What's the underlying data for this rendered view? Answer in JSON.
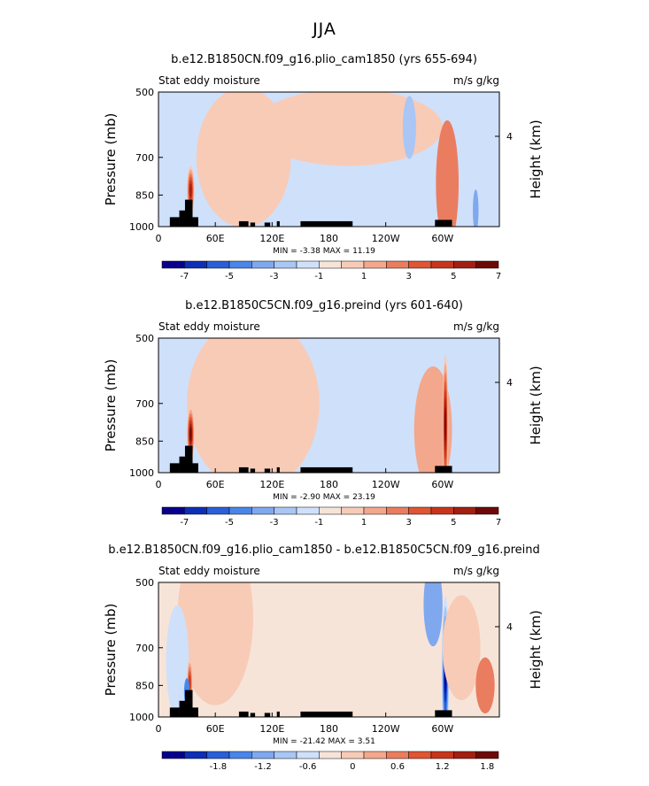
{
  "figure_title": "JJA",
  "chart_data": [
    {
      "type": "heatmap",
      "title": "b.e12.B1850CN.f09_g16.plio_cam1850 (yrs 655-694)",
      "left_label": "Stat eddy moisture",
      "right_label": "m/s g/kg",
      "ylabel": "Pressure (mb)",
      "ylabel_right": "Height (km)",
      "y_ticks": [
        "500",
        "700",
        "850",
        "1000"
      ],
      "y_right_ticks": [
        "4"
      ],
      "x_ticks": [
        "0",
        "60E",
        "120E",
        "180",
        "120W",
        "60W"
      ],
      "stats": "MIN = -3.38  MAX = 11.19",
      "colorbar_ticks": [
        "-7",
        "-5",
        "-3",
        "-1",
        "1",
        "3",
        "5",
        "7"
      ],
      "colorbar_colors": [
        "#08008c",
        "#0d2fb8",
        "#2a5fd8",
        "#4a86e8",
        "#7fa8ef",
        "#a9c6f4",
        "#cfe0fa",
        "#f7e4d8",
        "#f8cbb7",
        "#f3a78c",
        "#ea7d5f",
        "#e05532",
        "#c8351c",
        "#a31f12",
        "#6e0a06"
      ],
      "features": [
        {
          "type": "negative",
          "lon": 36,
          "lp": 920,
          "rlon": 6,
          "rp": 85,
          "level": -1
        },
        {
          "type": "positive",
          "lon": 34,
          "lp": 830,
          "rlon": 4,
          "rp": 70,
          "level": 6
        },
        {
          "type": "positive",
          "lon": 90,
          "lp": 700,
          "rlon": 50,
          "rp": 200,
          "level": 1
        },
        {
          "type": "positive",
          "lon": 200,
          "lp": 600,
          "rlon": 100,
          "rp": 110,
          "level": 1
        },
        {
          "type": "negative",
          "lon": 265,
          "lp": 600,
          "rlon": 7,
          "rp": 90,
          "level": -2
        },
        {
          "type": "positive",
          "lon": 305,
          "lp": 800,
          "rlon": 12,
          "rp": 180,
          "level": 3
        },
        {
          "type": "negative",
          "lon": 335,
          "lp": 920,
          "rlon": 3,
          "rp": 60,
          "level": -3
        }
      ],
      "base": -1
    },
    {
      "type": "heatmap",
      "title": "b.e12.B1850C5CN.f09_g16.preind (yrs 601-640)",
      "left_label": "Stat eddy moisture",
      "right_label": "m/s g/kg",
      "ylabel": "Pressure (mb)",
      "ylabel_right": "Height (km)",
      "y_ticks": [
        "500",
        "700",
        "850",
        "1000"
      ],
      "y_right_ticks": [
        "4"
      ],
      "x_ticks": [
        "0",
        "60E",
        "120E",
        "180",
        "120W",
        "60W"
      ],
      "stats": "MIN = -2.90  MAX = 23.19",
      "colorbar_ticks": [
        "-7",
        "-5",
        "-3",
        "-1",
        "1",
        "3",
        "5",
        "7"
      ],
      "colorbar_colors": [
        "#08008c",
        "#0d2fb8",
        "#2a5fd8",
        "#4a86e8",
        "#7fa8ef",
        "#a9c6f4",
        "#cfe0fa",
        "#f7e4d8",
        "#f8cbb7",
        "#f3a78c",
        "#ea7d5f",
        "#e05532",
        "#c8351c",
        "#a31f12",
        "#6e0a06"
      ],
      "features": [
        {
          "type": "positive",
          "lon": 100,
          "lp": 700,
          "rlon": 70,
          "rp": 250,
          "level": 1
        },
        {
          "type": "positive",
          "lon": 34,
          "lp": 820,
          "rlon": 4,
          "rp": 80,
          "level": 7
        },
        {
          "type": "negative",
          "lon": 240,
          "lp": 620,
          "rlon": 60,
          "rp": 100,
          "level": -1
        },
        {
          "type": "positive",
          "lon": 290,
          "lp": 800,
          "rlon": 20,
          "rp": 180,
          "level": 2
        },
        {
          "type": "positive",
          "lon": 303,
          "lp": 780,
          "rlon": 3,
          "rp": 200,
          "level": 7
        },
        {
          "type": "negative",
          "lon": 340,
          "lp": 680,
          "rlon": 25,
          "rp": 150,
          "level": -1
        }
      ],
      "base": -1
    },
    {
      "type": "heatmap",
      "title": "b.e12.B1850CN.f09_g16.plio_cam1850 - b.e12.B1850C5CN.f09_g16.preind",
      "left_label": "Stat eddy moisture",
      "right_label": "m/s g/kg",
      "ylabel": "Pressure (mb)",
      "ylabel_right": "Height (km)",
      "y_ticks": [
        "500",
        "700",
        "850",
        "1000"
      ],
      "y_right_ticks": [
        "4"
      ],
      "x_ticks": [
        "0",
        "60E",
        "120E",
        "180",
        "120W",
        "60W"
      ],
      "stats": "MIN = -21.42  MAX =  3.51",
      "colorbar_ticks": [
        "-1.8",
        "-1.2",
        "-0.6",
        "0",
        "0.6",
        "1.2",
        "1.8"
      ],
      "colorbar_colors": [
        "#08008c",
        "#0d2fb8",
        "#2a5fd8",
        "#4a86e8",
        "#7fa8ef",
        "#a9c6f4",
        "#cfe0fa",
        "#f7e4d8",
        "#f8cbb7",
        "#f3a78c",
        "#ea7d5f",
        "#e05532",
        "#c8351c",
        "#a31f12",
        "#6e0a06"
      ],
      "features": [
        {
          "type": "positive",
          "lon": 60,
          "lp": 600,
          "rlon": 40,
          "rp": 250,
          "level": 1
        },
        {
          "type": "negative",
          "lon": 20,
          "lp": 750,
          "rlon": 12,
          "rp": 160,
          "level": -1
        },
        {
          "type": "positive",
          "lon": 33,
          "lp": 840,
          "rlon": 3,
          "rp": 70,
          "level": 5
        },
        {
          "type": "negative",
          "lon": 30,
          "lp": 880,
          "rlon": 3,
          "rp": 40,
          "level": -4
        },
        {
          "type": "negative",
          "lon": 290,
          "lp": 560,
          "rlon": 10,
          "rp": 120,
          "level": -3
        },
        {
          "type": "negative",
          "lon": 303,
          "lp": 800,
          "rlon": 4,
          "rp": 220,
          "level": -7
        },
        {
          "type": "positive",
          "lon": 320,
          "lp": 700,
          "rlon": 20,
          "rp": 150,
          "level": 1
        },
        {
          "type": "positive",
          "lon": 345,
          "lp": 850,
          "rlon": 10,
          "rp": 80,
          "level": 3
        }
      ],
      "base": 0
    }
  ]
}
